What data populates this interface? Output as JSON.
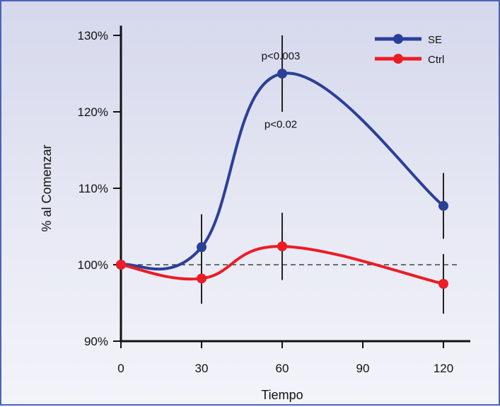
{
  "chart_data": {
    "type": "line",
    "xlabel": "Tiempo",
    "ylabel": "% al Comenzar",
    "x": [
      0,
      30,
      60,
      90,
      120
    ],
    "x_ticks": [
      "0",
      "30",
      "60",
      "90",
      "120"
    ],
    "y_ticks": [
      "90%",
      "100%",
      "110%",
      "120%",
      "130%"
    ],
    "xlim": [
      0,
      130
    ],
    "ylim": [
      90,
      131
    ],
    "reference_line": {
      "y": 100,
      "style": "dashed"
    },
    "legend_position": "top-right",
    "series": [
      {
        "name": "SE",
        "color": "#2b3f99",
        "x": [
          0,
          30,
          60,
          120
        ],
        "values": [
          100,
          102.3,
          125,
          107.7
        ],
        "error_bars": [
          0,
          4.3,
          5,
          4.3
        ]
      },
      {
        "name": "Ctrl",
        "color": "#ec1c24",
        "x": [
          0,
          30,
          60,
          120
        ],
        "values": [
          100,
          98.2,
          102.4,
          97.5
        ],
        "error_bars": [
          0,
          3.3,
          4.4,
          3.9
        ]
      }
    ],
    "annotations": [
      {
        "text": "p<0.003",
        "x": 60,
        "y": 127.3
      },
      {
        "text": "p<0.02",
        "x": 60,
        "y": 118.4
      }
    ]
  }
}
